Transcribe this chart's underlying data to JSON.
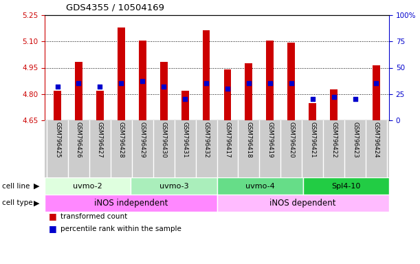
{
  "title": "GDS4355 / 10504169",
  "samples": [
    "GSM796425",
    "GSM796426",
    "GSM796427",
    "GSM796428",
    "GSM796429",
    "GSM796430",
    "GSM796431",
    "GSM796432",
    "GSM796417",
    "GSM796418",
    "GSM796419",
    "GSM796420",
    "GSM796421",
    "GSM796422",
    "GSM796423",
    "GSM796424"
  ],
  "transformed_count": [
    4.82,
    4.985,
    4.82,
    5.18,
    5.105,
    4.985,
    4.82,
    5.165,
    4.94,
    4.975,
    5.105,
    5.095,
    4.75,
    4.825,
    4.65,
    4.965
  ],
  "percentile_rank": [
    32,
    35,
    32,
    35,
    37,
    32,
    20,
    35,
    30,
    35,
    35,
    35,
    20,
    22,
    20,
    35
  ],
  "cell_lines": [
    {
      "name": "uvmo-2",
      "start": 0,
      "end": 4,
      "color": "#dfffdf"
    },
    {
      "name": "uvmo-3",
      "start": 4,
      "end": 8,
      "color": "#aaeebb"
    },
    {
      "name": "uvmo-4",
      "start": 8,
      "end": 12,
      "color": "#66dd88"
    },
    {
      "name": "Spl4-10",
      "start": 12,
      "end": 16,
      "color": "#22cc44"
    }
  ],
  "cell_types": [
    {
      "name": "iNOS independent",
      "start": 0,
      "end": 8,
      "color": "#ff88ff"
    },
    {
      "name": "iNOS dependent",
      "start": 8,
      "end": 16,
      "color": "#ffbbff"
    }
  ],
  "ylim_left": [
    4.65,
    5.25
  ],
  "ylim_right": [
    0,
    100
  ],
  "yticks_left": [
    4.65,
    4.8,
    4.95,
    5.1,
    5.25
  ],
  "yticks_right": [
    0,
    25,
    50,
    75,
    100
  ],
  "bar_color": "#cc0000",
  "dot_color": "#0000cc",
  "bar_bottom": 4.65,
  "background_color": "#ffffff",
  "fig_width": 6.11,
  "fig_height": 3.84,
  "dpi": 100
}
